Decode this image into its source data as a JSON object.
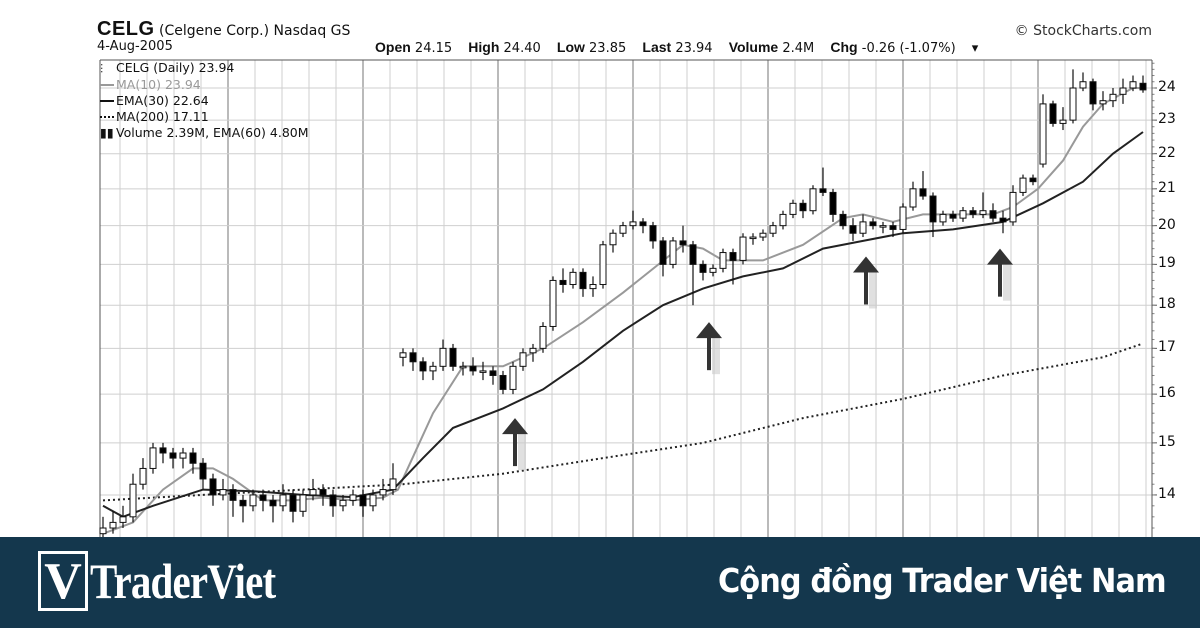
{
  "header": {
    "symbol": "CELG",
    "company": "(Celgene Corp.) Nasdaq GS",
    "date": "4-Aug-2005",
    "copyright": "© StockCharts.com",
    "quote": {
      "open_label": "Open",
      "open": "24.15",
      "high_label": "High",
      "high": "24.40",
      "low_label": "Low",
      "low": "23.85",
      "last_label": "Last",
      "last": "23.94",
      "volume_label": "Volume",
      "volume": "2.4M",
      "chg_label": "Chg",
      "chg": "-0.26 (-1.07%)",
      "dropdown_icon": "triangle-down-icon"
    }
  },
  "legend": [
    {
      "text": "CELG (Daily) 23.94",
      "icon": "candlestick-icon"
    },
    {
      "text": "MA(10) 23.94",
      "icon": "gray-line-icon"
    },
    {
      "text": "EMA(30) 22.64",
      "icon": "black-line-icon"
    },
    {
      "text": "MA(200) 17.11",
      "icon": "dotted-line-icon"
    },
    {
      "text": "Volume 2.39M, EMA(60) 4.80M",
      "icon": "volume-bars-icon"
    }
  ],
  "chart_data": {
    "type": "candlestick",
    "title": "CELG (Celgene Corp.) Nasdaq GS",
    "y_scale": "log",
    "ylim": [
      13.2,
      24.8
    ],
    "y_ticks": [
      "14",
      "15",
      "16",
      "17",
      "18",
      "19",
      "20",
      "21",
      "22",
      "23",
      "24"
    ],
    "grid": true,
    "legend_position": "top-left",
    "colors": {
      "up": "#ffffff",
      "down": "#000000",
      "ma10": "#999999",
      "ema30": "#222222",
      "ma200": "#222222",
      "grid": "#c8c8c8"
    },
    "candles_ohlc": [
      [
        13.3,
        13.6,
        13.2,
        13.4
      ],
      [
        13.4,
        13.7,
        13.3,
        13.5
      ],
      [
        13.5,
        13.8,
        13.4,
        13.6
      ],
      [
        13.6,
        14.4,
        13.5,
        14.2
      ],
      [
        14.2,
        14.7,
        14.1,
        14.5
      ],
      [
        14.5,
        15.0,
        14.4,
        14.9
      ],
      [
        14.9,
        15.0,
        14.6,
        14.8
      ],
      [
        14.8,
        14.9,
        14.5,
        14.7
      ],
      [
        14.7,
        14.9,
        14.5,
        14.8
      ],
      [
        14.8,
        14.9,
        14.4,
        14.6
      ],
      [
        14.6,
        14.7,
        14.1,
        14.3
      ],
      [
        14.3,
        14.4,
        13.8,
        14.0
      ],
      [
        14.0,
        14.3,
        13.9,
        14.1
      ],
      [
        14.1,
        14.2,
        13.6,
        13.9
      ],
      [
        13.9,
        14.0,
        13.5,
        13.8
      ],
      [
        13.8,
        14.1,
        13.7,
        14.0
      ],
      [
        14.0,
        14.1,
        13.7,
        13.9
      ],
      [
        13.9,
        14.0,
        13.5,
        13.8
      ],
      [
        13.8,
        14.2,
        13.7,
        14.0
      ],
      [
        14.0,
        14.1,
        13.5,
        13.7
      ],
      [
        13.7,
        14.1,
        13.6,
        14.0
      ],
      [
        14.0,
        14.3,
        13.9,
        14.1
      ],
      [
        14.1,
        14.2,
        13.8,
        14.0
      ],
      [
        14.0,
        14.1,
        13.6,
        13.8
      ],
      [
        13.8,
        14.0,
        13.7,
        13.9
      ],
      [
        13.9,
        14.1,
        13.8,
        14.0
      ],
      [
        14.0,
        14.1,
        13.6,
        13.8
      ],
      [
        13.8,
        14.1,
        13.7,
        14.0
      ],
      [
        14.0,
        14.3,
        13.9,
        14.1
      ],
      [
        14.1,
        14.6,
        14.0,
        14.3
      ],
      [
        16.8,
        17.0,
        16.6,
        16.9
      ],
      [
        16.9,
        17.0,
        16.5,
        16.7
      ],
      [
        16.7,
        16.8,
        16.3,
        16.5
      ],
      [
        16.5,
        16.7,
        16.3,
        16.6
      ],
      [
        16.6,
        17.2,
        16.5,
        17.0
      ],
      [
        17.0,
        17.1,
        16.5,
        16.6
      ],
      [
        16.6,
        16.7,
        16.4,
        16.6
      ],
      [
        16.6,
        16.8,
        16.4,
        16.5
      ],
      [
        16.5,
        16.7,
        16.3,
        16.5
      ],
      [
        16.5,
        16.6,
        16.2,
        16.4
      ],
      [
        16.4,
        16.5,
        16.0,
        16.1
      ],
      [
        16.1,
        16.7,
        16.0,
        16.6
      ],
      [
        16.6,
        17.0,
        16.5,
        16.9
      ],
      [
        16.9,
        17.1,
        16.7,
        17.0
      ],
      [
        17.0,
        17.6,
        16.9,
        17.5
      ],
      [
        17.5,
        18.7,
        17.4,
        18.6
      ],
      [
        18.6,
        18.9,
        18.3,
        18.5
      ],
      [
        18.5,
        18.9,
        18.4,
        18.8
      ],
      [
        18.8,
        18.9,
        18.2,
        18.4
      ],
      [
        18.4,
        18.7,
        18.2,
        18.5
      ],
      [
        18.5,
        19.6,
        18.4,
        19.5
      ],
      [
        19.5,
        19.9,
        19.3,
        19.8
      ],
      [
        19.8,
        20.1,
        19.7,
        20.0
      ],
      [
        20.0,
        20.4,
        19.9,
        20.1
      ],
      [
        20.1,
        20.2,
        19.8,
        20.0
      ],
      [
        20.0,
        20.1,
        19.4,
        19.6
      ],
      [
        19.6,
        19.7,
        18.7,
        19.0
      ],
      [
        19.0,
        19.7,
        18.9,
        19.6
      ],
      [
        19.6,
        20.0,
        19.3,
        19.5
      ],
      [
        19.5,
        19.6,
        18.0,
        19.0
      ],
      [
        19.0,
        19.1,
        18.6,
        18.8
      ],
      [
        18.8,
        19.0,
        18.7,
        18.9
      ],
      [
        18.9,
        19.4,
        18.8,
        19.3
      ],
      [
        19.3,
        19.4,
        18.5,
        19.1
      ],
      [
        19.1,
        19.8,
        19.0,
        19.7
      ],
      [
        19.7,
        19.8,
        19.5,
        19.7
      ],
      [
        19.7,
        19.9,
        19.6,
        19.8
      ],
      [
        19.8,
        20.1,
        19.7,
        20.0
      ],
      [
        20.0,
        20.4,
        19.9,
        20.3
      ],
      [
        20.3,
        20.7,
        20.2,
        20.6
      ],
      [
        20.6,
        20.7,
        20.2,
        20.4
      ],
      [
        20.4,
        21.1,
        20.3,
        21.0
      ],
      [
        21.0,
        21.6,
        20.8,
        20.9
      ],
      [
        20.9,
        21.0,
        20.1,
        20.3
      ],
      [
        20.3,
        20.4,
        19.9,
        20.0
      ],
      [
        20.0,
        20.2,
        19.6,
        19.8
      ],
      [
        19.8,
        20.3,
        19.7,
        20.1
      ],
      [
        20.1,
        20.2,
        19.9,
        20.0
      ],
      [
        20.0,
        20.1,
        19.8,
        20.0
      ],
      [
        20.0,
        20.1,
        19.7,
        19.9
      ],
      [
        19.9,
        20.6,
        19.8,
        20.5
      ],
      [
        20.5,
        21.2,
        20.4,
        21.0
      ],
      [
        21.0,
        21.5,
        20.7,
        20.8
      ],
      [
        20.8,
        20.9,
        19.7,
        20.1
      ],
      [
        20.1,
        20.4,
        20.0,
        20.3
      ],
      [
        20.3,
        20.4,
        20.1,
        20.2
      ],
      [
        20.2,
        20.5,
        20.1,
        20.4
      ],
      [
        20.4,
        20.5,
        20.2,
        20.3
      ],
      [
        20.3,
        20.9,
        20.2,
        20.4
      ],
      [
        20.4,
        20.6,
        20.1,
        20.2
      ],
      [
        20.2,
        20.4,
        19.8,
        20.1
      ],
      [
        20.1,
        21.1,
        20.0,
        20.9
      ],
      [
        20.9,
        21.4,
        20.8,
        21.3
      ],
      [
        21.3,
        21.4,
        21.1,
        21.2
      ],
      [
        21.7,
        23.8,
        21.6,
        23.5
      ],
      [
        23.5,
        23.6,
        22.8,
        22.9
      ],
      [
        22.9,
        23.4,
        22.7,
        23.0
      ],
      [
        23.0,
        24.6,
        22.9,
        24.0
      ],
      [
        24.0,
        24.5,
        23.9,
        24.2
      ],
      [
        24.2,
        24.3,
        23.3,
        23.5
      ],
      [
        23.5,
        23.9,
        23.3,
        23.6
      ],
      [
        23.6,
        24.0,
        23.4,
        23.8
      ],
      [
        23.8,
        24.3,
        23.5,
        24.0
      ],
      [
        24.0,
        24.4,
        23.9,
        24.2
      ],
      [
        24.15,
        24.4,
        23.85,
        23.94
      ]
    ],
    "ma10": [
      [
        0,
        13.3
      ],
      [
        3,
        13.5
      ],
      [
        6,
        14.1
      ],
      [
        9,
        14.5
      ],
      [
        11,
        14.5
      ],
      [
        13,
        14.3
      ],
      [
        16,
        13.9
      ],
      [
        19,
        13.9
      ],
      [
        22,
        13.95
      ],
      [
        25,
        13.9
      ],
      [
        28,
        13.95
      ],
      [
        29.5,
        14.1
      ],
      [
        33,
        15.6
      ],
      [
        36,
        16.6
      ],
      [
        40,
        16.6
      ],
      [
        44,
        17.0
      ],
      [
        48,
        17.6
      ],
      [
        52,
        18.3
      ],
      [
        58,
        19.5
      ],
      [
        60,
        19.4
      ],
      [
        62,
        19.1
      ],
      [
        66,
        19.1
      ],
      [
        70,
        19.5
      ],
      [
        74,
        20.2
      ],
      [
        76,
        20.3
      ],
      [
        79,
        20.1
      ],
      [
        82,
        20.3
      ],
      [
        86,
        20.3
      ],
      [
        89,
        20.3
      ],
      [
        91,
        20.5
      ],
      [
        93.5,
        21.0
      ],
      [
        96,
        21.8
      ],
      [
        98,
        22.8
      ],
      [
        100,
        23.5
      ],
      [
        103,
        24.0
      ],
      [
        104,
        24.0
      ]
    ],
    "ema30": [
      [
        0,
        13.8
      ],
      [
        2,
        13.6
      ],
      [
        5,
        13.8
      ],
      [
        10,
        14.1
      ],
      [
        15,
        14.07
      ],
      [
        20,
        14.0
      ],
      [
        25,
        13.96
      ],
      [
        29,
        14.1
      ],
      [
        32,
        14.7
      ],
      [
        35,
        15.3
      ],
      [
        40,
        15.7
      ],
      [
        44,
        16.1
      ],
      [
        48,
        16.7
      ],
      [
        52,
        17.4
      ],
      [
        56,
        18.0
      ],
      [
        60,
        18.4
      ],
      [
        64,
        18.7
      ],
      [
        68,
        18.9
      ],
      [
        72,
        19.4
      ],
      [
        76,
        19.6
      ],
      [
        80,
        19.8
      ],
      [
        85,
        19.9
      ],
      [
        90,
        20.1
      ],
      [
        94,
        20.6
      ],
      [
        98,
        21.2
      ],
      [
        101,
        22.0
      ],
      [
        104,
        22.64
      ]
    ],
    "ma200": [
      [
        0,
        13.9
      ],
      [
        10,
        14.0
      ],
      [
        20,
        14.1
      ],
      [
        30,
        14.2
      ],
      [
        40,
        14.4
      ],
      [
        50,
        14.7
      ],
      [
        60,
        15.0
      ],
      [
        70,
        15.5
      ],
      [
        80,
        15.9
      ],
      [
        90,
        16.4
      ],
      [
        100,
        16.8
      ],
      [
        104,
        17.11
      ]
    ],
    "annotations": [
      {
        "type": "arrow-up",
        "index": 41.2,
        "price": 15.5
      },
      {
        "type": "arrow-up",
        "index": 60.6,
        "price": 17.6
      },
      {
        "type": "arrow-up",
        "index": 76.3,
        "price": 19.2
      },
      {
        "type": "arrow-up",
        "index": 89.7,
        "price": 19.4
      }
    ]
  },
  "banner": {
    "logo_mark": "V",
    "logo_text": "TraderViet",
    "tagline": "Cộng đồng Trader Việt Nam",
    "background": "#14374d"
  }
}
